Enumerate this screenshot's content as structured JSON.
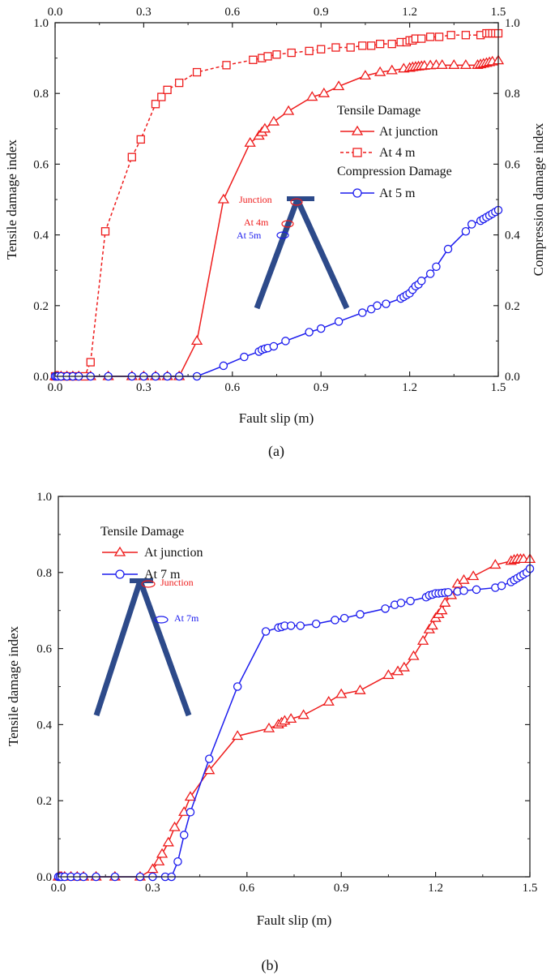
{
  "colors": {
    "red": "#ee1c1c",
    "blue": "#1c1cee",
    "frame": "#222222",
    "truss": "#2d4a8a"
  },
  "chart_data": [
    {
      "type": "line",
      "panel_label": "(a)",
      "xlabel": "Fault slip (m)",
      "ylabel": "Tensile damage index",
      "ylabel_right": "Compression damage index",
      "xlim": [
        0,
        1.5
      ],
      "ylim": [
        0,
        1.0
      ],
      "xticks": [
        "0.0",
        "0.3",
        "0.6",
        "0.9",
        "1.2",
        "1.5"
      ],
      "yticks": [
        "0.0",
        "0.2",
        "0.4",
        "0.6",
        "0.8",
        "1.0"
      ],
      "legend_location": "right-middle",
      "legend_groups": [
        "Tensile Damage",
        "Compression Damage"
      ],
      "series": [
        {
          "name": "At junction",
          "group": "Tensile Damage",
          "color": "#ee1c1c",
          "marker": "triangle",
          "dash": "solid",
          "x": [
            0.0,
            0.005,
            0.01,
            0.02,
            0.04,
            0.06,
            0.08,
            0.12,
            0.18,
            0.26,
            0.3,
            0.34,
            0.38,
            0.42,
            0.48,
            0.57,
            0.66,
            0.69,
            0.7,
            0.71,
            0.74,
            0.79,
            0.87,
            0.91,
            0.96,
            1.05,
            1.1,
            1.14,
            1.18,
            1.2,
            1.21,
            1.22,
            1.23,
            1.24,
            1.25,
            1.27,
            1.29,
            1.31,
            1.35,
            1.39,
            1.43,
            1.44,
            1.45,
            1.46,
            1.47,
            1.48,
            1.5
          ],
          "y": [
            0.0,
            0.0,
            0.0,
            0.0,
            0.0,
            0.0,
            0.0,
            0.0,
            0.0,
            0.0,
            0.0,
            0.0,
            0.0,
            0.0,
            0.1,
            0.5,
            0.66,
            0.68,
            0.69,
            0.7,
            0.72,
            0.75,
            0.79,
            0.8,
            0.82,
            0.85,
            0.86,
            0.865,
            0.87,
            0.872,
            0.874,
            0.875,
            0.876,
            0.877,
            0.878,
            0.879,
            0.88,
            0.88,
            0.88,
            0.88,
            0.88,
            0.882,
            0.884,
            0.886,
            0.888,
            0.89,
            0.893
          ]
        },
        {
          "name": "At 4 m",
          "group": "Tensile Damage",
          "color": "#ee1c1c",
          "marker": "square",
          "dash": "dashed",
          "x": [
            0.0,
            0.01,
            0.03,
            0.05,
            0.07,
            0.1,
            0.12,
            0.17,
            0.26,
            0.29,
            0.34,
            0.36,
            0.38,
            0.42,
            0.48,
            0.58,
            0.67,
            0.7,
            0.72,
            0.75,
            0.8,
            0.86,
            0.9,
            0.95,
            1.0,
            1.04,
            1.07,
            1.1,
            1.14,
            1.17,
            1.19,
            1.2,
            1.21,
            1.22,
            1.24,
            1.27,
            1.3,
            1.34,
            1.39,
            1.44,
            1.46,
            1.47,
            1.48,
            1.49,
            1.5
          ],
          "y": [
            0.0,
            0.0,
            0.0,
            0.0,
            0.0,
            0.0,
            0.04,
            0.41,
            0.62,
            0.67,
            0.77,
            0.79,
            0.81,
            0.83,
            0.86,
            0.88,
            0.895,
            0.9,
            0.905,
            0.91,
            0.915,
            0.92,
            0.925,
            0.93,
            0.93,
            0.935,
            0.935,
            0.94,
            0.94,
            0.945,
            0.945,
            0.95,
            0.95,
            0.955,
            0.955,
            0.96,
            0.96,
            0.965,
            0.965,
            0.965,
            0.97,
            0.97,
            0.97,
            0.97,
            0.97
          ]
        },
        {
          "name": "At 5 m",
          "group": "Compression Damage",
          "color": "#1c1cee",
          "marker": "circle",
          "dash": "solid",
          "x": [
            0.0,
            0.005,
            0.01,
            0.02,
            0.04,
            0.06,
            0.08,
            0.12,
            0.18,
            0.26,
            0.3,
            0.34,
            0.38,
            0.42,
            0.48,
            0.57,
            0.64,
            0.69,
            0.7,
            0.71,
            0.72,
            0.74,
            0.78,
            0.86,
            0.9,
            0.96,
            1.04,
            1.07,
            1.09,
            1.12,
            1.17,
            1.18,
            1.19,
            1.2,
            1.21,
            1.22,
            1.23,
            1.24,
            1.27,
            1.29,
            1.33,
            1.39,
            1.41,
            1.44,
            1.45,
            1.46,
            1.47,
            1.48,
            1.49,
            1.5
          ],
          "y": [
            0.0,
            0.0,
            0.0,
            0.0,
            0.0,
            0.0,
            0.0,
            0.0,
            0.0,
            0.0,
            0.0,
            0.0,
            0.0,
            0.0,
            0.0,
            0.03,
            0.055,
            0.07,
            0.075,
            0.078,
            0.08,
            0.085,
            0.1,
            0.125,
            0.135,
            0.155,
            0.18,
            0.19,
            0.2,
            0.205,
            0.22,
            0.225,
            0.23,
            0.235,
            0.245,
            0.255,
            0.26,
            0.27,
            0.29,
            0.31,
            0.36,
            0.41,
            0.43,
            0.44,
            0.445,
            0.45,
            0.455,
            0.46,
            0.465,
            0.47
          ]
        }
      ],
      "inset": {
        "labels": [
          "Junction",
          "At 4m",
          "At 5m"
        ]
      }
    },
    {
      "type": "line",
      "panel_label": "(b)",
      "xlabel": "Fault slip (m)",
      "ylabel": "Tensile damage index",
      "xlim": [
        0,
        1.5
      ],
      "ylim": [
        0,
        1.0
      ],
      "xticks": [
        "0.0",
        "0.3",
        "0.6",
        "0.9",
        "1.2",
        "1.5"
      ],
      "yticks": [
        "0.0",
        "0.2",
        "0.4",
        "0.6",
        "0.8",
        "1.0"
      ],
      "legend_location": "top-left",
      "legend_groups": [
        "Tensile Damage"
      ],
      "series": [
        {
          "name": "At junction",
          "group": "Tensile Damage",
          "color": "#ee1c1c",
          "marker": "triangle",
          "dash": "solid",
          "x": [
            0.0,
            0.005,
            0.01,
            0.02,
            0.04,
            0.06,
            0.08,
            0.12,
            0.18,
            0.26,
            0.3,
            0.32,
            0.33,
            0.35,
            0.37,
            0.4,
            0.42,
            0.48,
            0.57,
            0.67,
            0.7,
            0.71,
            0.72,
            0.74,
            0.78,
            0.86,
            0.9,
            0.96,
            1.05,
            1.08,
            1.1,
            1.13,
            1.16,
            1.18,
            1.19,
            1.2,
            1.21,
            1.22,
            1.23,
            1.25,
            1.27,
            1.29,
            1.32,
            1.39,
            1.44,
            1.45,
            1.46,
            1.47,
            1.48,
            1.5
          ],
          "y": [
            0.0,
            0.0,
            0.0,
            0.0,
            0.0,
            0.0,
            0.0,
            0.0,
            0.0,
            0.0,
            0.02,
            0.04,
            0.06,
            0.09,
            0.13,
            0.17,
            0.21,
            0.28,
            0.37,
            0.39,
            0.4,
            0.405,
            0.41,
            0.415,
            0.425,
            0.46,
            0.48,
            0.49,
            0.53,
            0.54,
            0.55,
            0.58,
            0.62,
            0.65,
            0.66,
            0.68,
            0.69,
            0.7,
            0.72,
            0.74,
            0.77,
            0.78,
            0.79,
            0.82,
            0.83,
            0.833,
            0.835,
            0.835,
            0.835,
            0.835
          ]
        },
        {
          "name": "At 7 m",
          "group": "Tensile Damage",
          "color": "#1c1cee",
          "marker": "circle",
          "dash": "solid",
          "x": [
            0.0,
            0.005,
            0.01,
            0.02,
            0.04,
            0.06,
            0.08,
            0.12,
            0.18,
            0.26,
            0.3,
            0.34,
            0.36,
            0.38,
            0.4,
            0.42,
            0.48,
            0.57,
            0.66,
            0.7,
            0.71,
            0.72,
            0.74,
            0.77,
            0.82,
            0.88,
            0.91,
            0.96,
            1.04,
            1.07,
            1.09,
            1.12,
            1.17,
            1.18,
            1.19,
            1.2,
            1.21,
            1.22,
            1.23,
            1.24,
            1.27,
            1.29,
            1.33,
            1.39,
            1.41,
            1.44,
            1.45,
            1.46,
            1.47,
            1.48,
            1.49,
            1.5
          ],
          "y": [
            0.0,
            0.0,
            0.0,
            0.0,
            0.0,
            0.0,
            0.0,
            0.0,
            0.0,
            0.0,
            0.0,
            0.0,
            0.0,
            0.04,
            0.11,
            0.17,
            0.31,
            0.5,
            0.645,
            0.655,
            0.657,
            0.66,
            0.66,
            0.66,
            0.665,
            0.675,
            0.68,
            0.69,
            0.705,
            0.715,
            0.72,
            0.725,
            0.735,
            0.74,
            0.742,
            0.745,
            0.745,
            0.746,
            0.747,
            0.748,
            0.75,
            0.752,
            0.755,
            0.76,
            0.765,
            0.775,
            0.78,
            0.785,
            0.79,
            0.795,
            0.8,
            0.81
          ]
        }
      ],
      "inset": {
        "labels": [
          "Junction",
          "At 7m"
        ]
      }
    }
  ]
}
